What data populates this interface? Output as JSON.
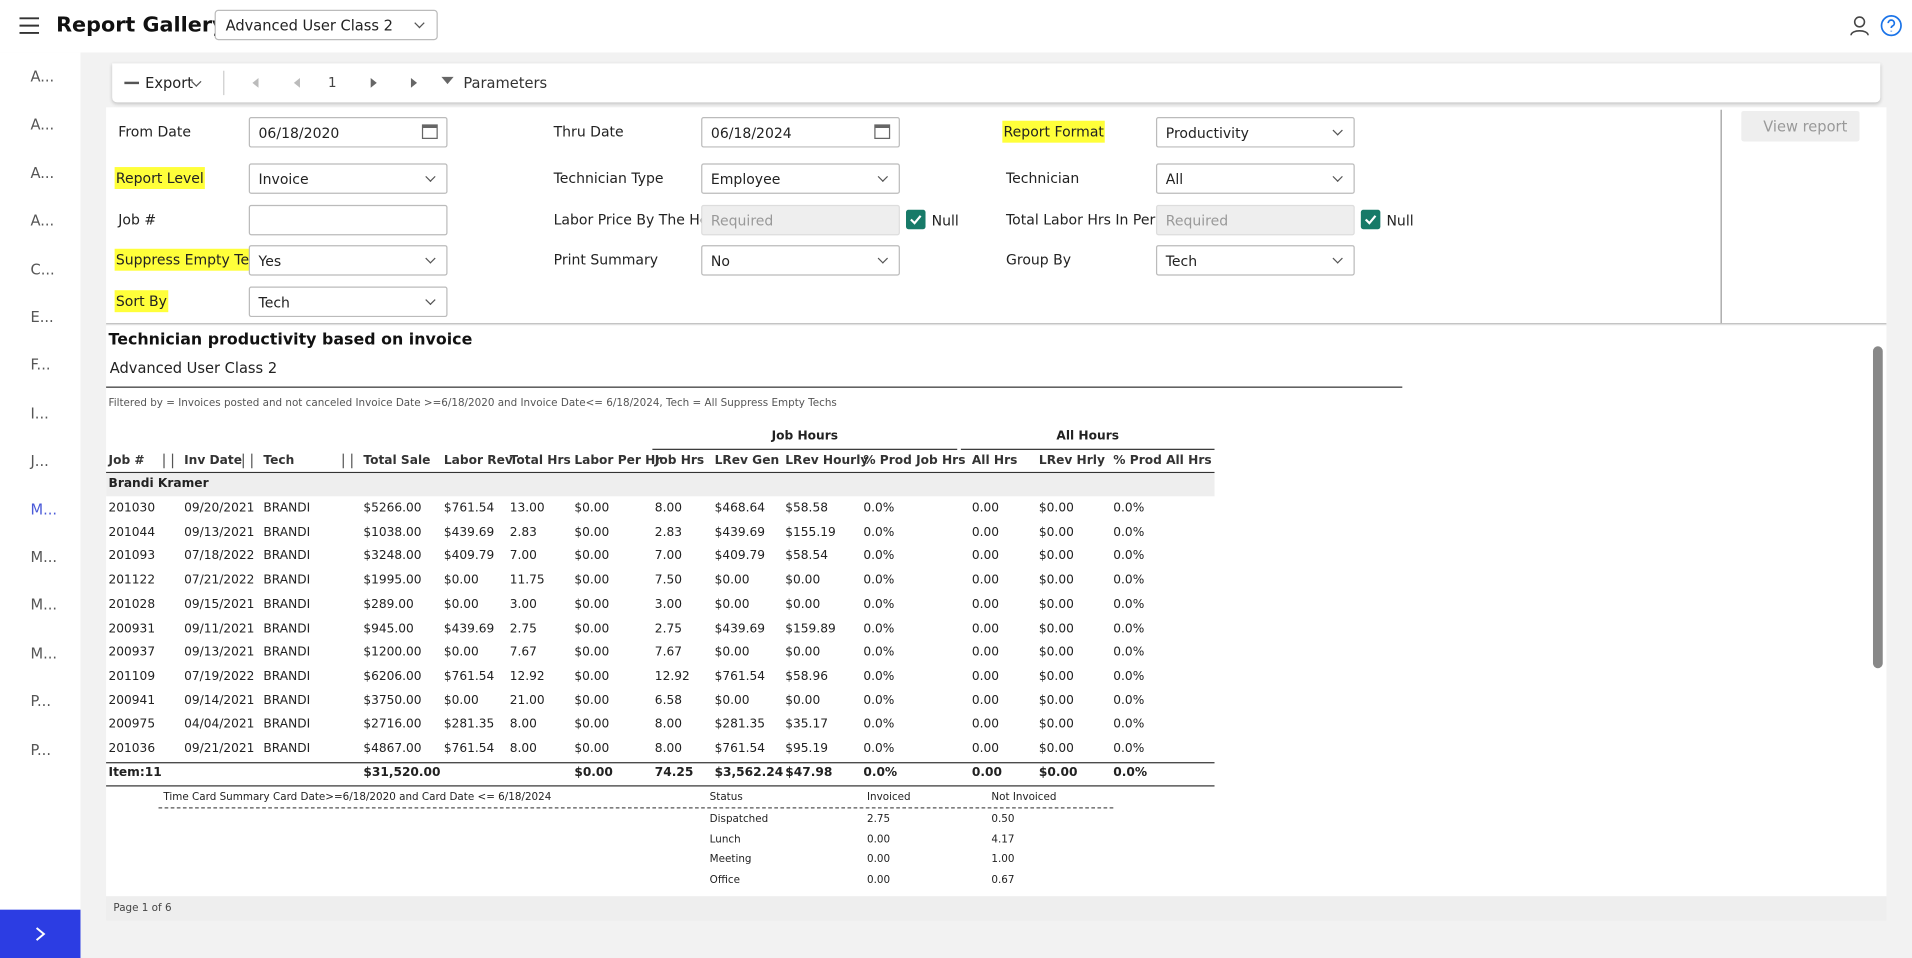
{
  "header": {
    "title": "Report Gallery",
    "class_select": "Advanced User Class 2"
  },
  "sidebar": {
    "items": [
      "A...",
      "A...",
      "A...",
      "A...",
      "C...",
      "E...",
      "F...",
      "I...",
      "J...",
      "M...",
      "M...",
      "M...",
      "M...",
      "P...",
      "P..."
    ]
  },
  "toolbar": {
    "export": "Export",
    "page": "1",
    "parameters": "Parameters"
  },
  "parameters": {
    "columns": [
      [
        {
          "label": "From Date",
          "value": "06/18/2020",
          "kind": "date"
        },
        {
          "label": "Report Level",
          "value": "Invoice",
          "kind": "select",
          "highlight": true
        },
        {
          "label": "Job #",
          "kind": "text"
        },
        {
          "label": "Suppress Empty Tech",
          "value": "Yes",
          "kind": "select",
          "highlight": true
        },
        {
          "label": "Sort By",
          "value": "Tech",
          "kind": "select",
          "highlight": true
        }
      ],
      [
        {
          "label": "Thru Date",
          "value": "06/18/2024",
          "kind": "date"
        },
        {
          "label": "Technician Type",
          "value": "Employee",
          "kind": "select"
        },
        {
          "label": "Labor Price By The Hour",
          "placeholder": "Required",
          "kind": "text",
          "null_label": "Null",
          "null_checked": true
        },
        {
          "label": "Print Summary",
          "value": "No",
          "kind": "select"
        }
      ],
      [
        {
          "label": "Report Format",
          "value": "Productivity",
          "kind": "select",
          "highlight": true
        },
        {
          "label": "Technician",
          "value": "All",
          "kind": "select"
        },
        {
          "label": "Total Labor Hrs In Period",
          "placeholder": "Required",
          "kind": "text",
          "null_label": "Null",
          "null_checked": true
        },
        {
          "label": "Group By",
          "value": "Tech",
          "kind": "select"
        }
      ]
    ],
    "view_report": "View report"
  },
  "report": {
    "title": "Technician productivity based on invoice",
    "subtitle": "Advanced User Class 2",
    "filter": "Filtered by = Invoices posted and not canceled Invoice Date >=6/18/2020 and Invoice Date<= 6/18/2024, Tech = All Suppress Empty Techs",
    "column_groups": [
      "Job Hours",
      "All Hours"
    ],
    "columns": [
      "Job #",
      "Inv Date",
      "Tech",
      "Total Sale",
      "Labor Rev",
      "Total Hrs",
      "Labor Per Hr",
      "Job Hrs",
      "LRev Gen",
      "LRev Hourly",
      "% Prod Job Hrs",
      "All Hrs",
      "LRev Hrly",
      "% Prod All Hrs"
    ],
    "group": "Brandi Kramer",
    "rows": [
      [
        "201030",
        "09/20/2021",
        "BRANDI",
        "$5266.00",
        "$761.54",
        "13.00",
        "$0.00",
        "8.00",
        "$468.64",
        "$58.58",
        "0.0%",
        "0.00",
        "$0.00",
        "0.0%"
      ],
      [
        "201044",
        "09/13/2021",
        "BRANDI",
        "$1038.00",
        "$439.69",
        "2.83",
        "$0.00",
        "2.83",
        "$439.69",
        "$155.19",
        "0.0%",
        "0.00",
        "$0.00",
        "0.0%"
      ],
      [
        "201093",
        "07/18/2022",
        "BRANDI",
        "$3248.00",
        "$409.79",
        "7.00",
        "$0.00",
        "7.00",
        "$409.79",
        "$58.54",
        "0.0%",
        "0.00",
        "$0.00",
        "0.0%"
      ],
      [
        "201122",
        "07/21/2022",
        "BRANDI",
        "$1995.00",
        "$0.00",
        "11.75",
        "$0.00",
        "7.50",
        "$0.00",
        "$0.00",
        "0.0%",
        "0.00",
        "$0.00",
        "0.0%"
      ],
      [
        "201028",
        "09/15/2021",
        "BRANDI",
        "$289.00",
        "$0.00",
        "3.00",
        "$0.00",
        "3.00",
        "$0.00",
        "$0.00",
        "0.0%",
        "0.00",
        "$0.00",
        "0.0%"
      ],
      [
        "200931",
        "09/11/2021",
        "BRANDI",
        "$945.00",
        "$439.69",
        "2.75",
        "$0.00",
        "2.75",
        "$439.69",
        "$159.89",
        "0.0%",
        "0.00",
        "$0.00",
        "0.0%"
      ],
      [
        "200937",
        "09/13/2021",
        "BRANDI",
        "$1200.00",
        "$0.00",
        "7.67",
        "$0.00",
        "7.67",
        "$0.00",
        "$0.00",
        "0.0%",
        "0.00",
        "$0.00",
        "0.0%"
      ],
      [
        "201109",
        "07/19/2022",
        "BRANDI",
        "$6206.00",
        "$761.54",
        "12.92",
        "$0.00",
        "12.92",
        "$761.54",
        "$58.96",
        "0.0%",
        "0.00",
        "$0.00",
        "0.0%"
      ],
      [
        "200941",
        "09/14/2021",
        "BRANDI",
        "$3750.00",
        "$0.00",
        "21.00",
        "$0.00",
        "6.58",
        "$0.00",
        "$0.00",
        "0.0%",
        "0.00",
        "$0.00",
        "0.0%"
      ],
      [
        "200975",
        "04/04/2021",
        "BRANDI",
        "$2716.00",
        "$281.35",
        "8.00",
        "$0.00",
        "8.00",
        "$281.35",
        "$35.17",
        "0.0%",
        "0.00",
        "$0.00",
        "0.0%"
      ],
      [
        "201036",
        "09/21/2021",
        "BRANDI",
        "$4867.00",
        "$761.54",
        "8.00",
        "$0.00",
        "8.00",
        "$761.54",
        "$95.19",
        "0.0%",
        "0.00",
        "$0.00",
        "0.0%"
      ]
    ],
    "totals": [
      "Item:11",
      null,
      null,
      "$31,520.00",
      null,
      null,
      "$0.00",
      "74.25",
      "$3,562.24",
      "$47.98",
      "0.0%",
      "0.00",
      "$0.00",
      "0.0%"
    ],
    "summary": {
      "caption": "Time Card Summary Card Date>=6/18/2020 and Card Date <= 6/18/2024",
      "headers": [
        "Status",
        "Invoiced",
        "Not Invoiced"
      ],
      "rows": [
        [
          "Dispatched",
          "2.75",
          "0.50"
        ],
        [
          "Lunch",
          "0.00",
          "4.17"
        ],
        [
          "Meeting",
          "0.00",
          "1.00"
        ],
        [
          "Office",
          "0.00",
          "0.67"
        ]
      ]
    },
    "footer": "Page 1 of 6"
  }
}
